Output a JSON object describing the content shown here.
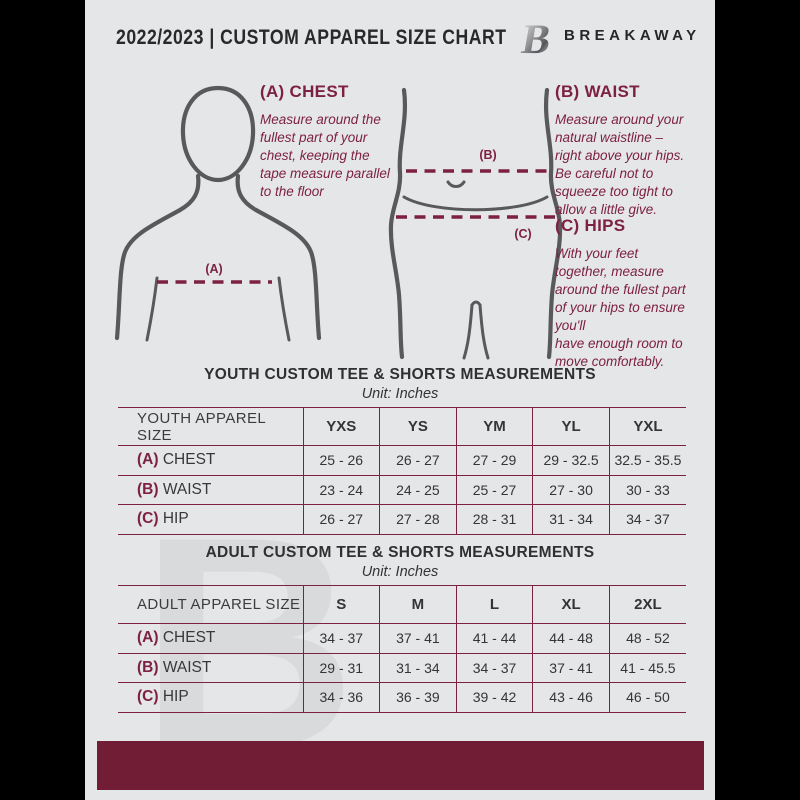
{
  "header": {
    "title": "2022/2023  |  CUSTOM APPAREL SIZE CHART",
    "brand": "BREAKAWAY",
    "logo_letter": "B"
  },
  "instructions": [
    {
      "title": "(A) CHEST",
      "body": "Measure around the\nfullest part of your\nchest, keeping the\ntape measure parallel\nto the floor"
    },
    {
      "title": "(B) WAIST",
      "body": "Measure around your\nnatural waistline –\nright above your hips.\nBe careful not to\nsqueeze too tight to\nallow a little give."
    },
    {
      "title": "(C) HIPS",
      "body": "With your feet\ntogether, measure\naround the fullest part\nof your hips to ensure\nyou'll\nhave enough room to\nmove comfortably."
    }
  ],
  "diagram": {
    "chest_label": "(A)",
    "waist_label": "(B)",
    "hips_label": "(C)"
  },
  "youth_table": {
    "title": "YOUTH CUSTOM TEE & SHORTS MEASUREMENTS",
    "unit": "Unit: Inches",
    "header": [
      "YOUTH APPAREL SIZE",
      "YXS",
      "YS",
      "YM",
      "YL",
      "YXL"
    ],
    "rows": [
      {
        "prefix": "(A)",
        "label": "CHEST",
        "values": [
          "25 - 26",
          "26 - 27",
          "27 - 29",
          "29 - 32.5",
          "32.5 - 35.5"
        ]
      },
      {
        "prefix": "(B)",
        "label": "WAIST",
        "values": [
          "23 - 24",
          "24 - 25",
          "25 - 27",
          "27 - 30",
          "30 - 33"
        ]
      },
      {
        "prefix": "(C)",
        "label": "HIP",
        "values": [
          "26 - 27",
          "27 - 28",
          "28 - 31",
          "31 - 34",
          "34 - 37"
        ]
      }
    ]
  },
  "adult_table": {
    "title": "ADULT CUSTOM TEE & SHORTS MEASUREMENTS",
    "unit": "Unit: Inches",
    "header": [
      "ADULT APPAREL SIZE",
      "S",
      "M",
      "L",
      "XL",
      "2XL"
    ],
    "rows": [
      {
        "prefix": "(A)",
        "label": "CHEST",
        "values": [
          "34 - 37",
          "37 - 41",
          "41 - 44",
          "44 - 48",
          "48 - 52"
        ]
      },
      {
        "prefix": "(B)",
        "label": "WAIST",
        "values": [
          "29 - 31",
          "31 - 34",
          "34 - 37",
          "37 - 41",
          "41 - 45.5"
        ]
      },
      {
        "prefix": "(C)",
        "label": "HIP",
        "values": [
          "34 - 36",
          "36 - 39",
          "39 - 42",
          "43 - 46",
          "46 - 50"
        ]
      }
    ]
  },
  "watermark_letter": "B",
  "colors": {
    "accent_maroon": "#7d2140",
    "footer_bar": "#701d35",
    "background": "#e5e6e8",
    "text_dark": "#2e3032",
    "figure_gray": "#59595b",
    "watermark": "#d9dadc"
  }
}
